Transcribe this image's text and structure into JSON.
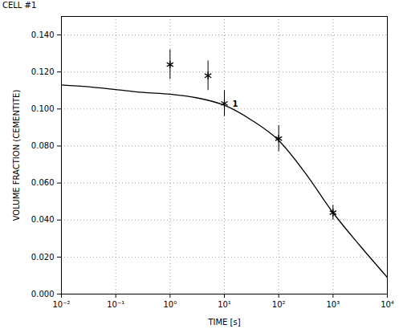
{
  "chart_data": {
    "type": "line",
    "title": "CELL #1",
    "x_label": "TIME [s]",
    "y_label": "VOLUME FRACTION (CEMENTITE)",
    "log": "x",
    "grid": true,
    "xlim": [
      0.01,
      10000
    ],
    "ylim": [
      0,
      0.15
    ],
    "xticks": [
      {
        "value": 0.01,
        "label": "10⁻²"
      },
      {
        "value": 0.1,
        "label": "10⁻¹"
      },
      {
        "value": 1,
        "label": "10⁰"
      },
      {
        "value": 10,
        "label": "10¹"
      },
      {
        "value": 100,
        "label": "10²"
      },
      {
        "value": 1000,
        "label": "10³"
      },
      {
        "value": 10000,
        "label": "10⁴"
      }
    ],
    "yticks": [
      {
        "value": 0,
        "label": "0.000"
      },
      {
        "value": 0.02,
        "label": "0.020"
      },
      {
        "value": 0.04,
        "label": "0.040"
      },
      {
        "value": 0.06,
        "label": "0.060"
      },
      {
        "value": 0.08,
        "label": "0.080"
      },
      {
        "value": 0.1,
        "label": "0.100"
      },
      {
        "value": 0.12,
        "label": "0.120"
      },
      {
        "value": 0.14,
        "label": "0.140"
      }
    ],
    "series": [
      {
        "type": "line",
        "color": "#000000",
        "line_style": "solid",
        "x": [
          0.01,
          0.0316,
          0.1,
          0.316,
          1,
          3.16,
          10,
          31.6,
          100,
          316,
          1000,
          3162,
          10000
        ],
        "values": [
          0.113,
          0.112,
          0.1105,
          0.109,
          0.108,
          0.106,
          0.102,
          0.094,
          0.083,
          0.065,
          0.044,
          0.026,
          0.009
        ]
      },
      {
        "type": "scatter",
        "color": "#000000",
        "marker": "asterisk",
        "x": [
          1,
          5,
          10,
          100,
          1000
        ],
        "values": [
          0.124,
          0.118,
          0.103,
          0.084,
          0.044
        ],
        "error_bars": [
          [
            0.116,
            0.132
          ],
          [
            0.11,
            0.126
          ],
          [
            0.096,
            0.11
          ],
          [
            0.077,
            0.091
          ],
          [
            0.04,
            0.048
          ]
        ]
      }
    ],
    "annotations": [
      {
        "text": "1",
        "x": 10,
        "y": 0.103
      }
    ]
  }
}
